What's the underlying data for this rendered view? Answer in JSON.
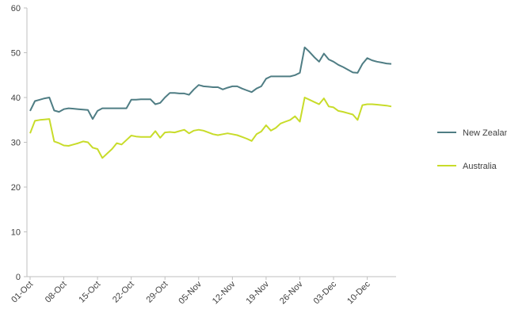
{
  "chart_data": {
    "type": "line",
    "xlabel": "",
    "ylabel": "",
    "ylim": [
      0,
      60
    ],
    "yticks": [
      0,
      10,
      20,
      30,
      40,
      50,
      60
    ],
    "grid": false,
    "legend_position": "right",
    "x_tick_labels": [
      "01-Oct",
      "08-Oct",
      "15-Oct",
      "22-Oct",
      "29-Oct",
      "05-Nov",
      "12-Nov",
      "19-Nov",
      "26-Nov",
      "03-Dec",
      "10-Dec"
    ],
    "x": [
      "01-Oct",
      "02-Oct",
      "03-Oct",
      "04-Oct",
      "05-Oct",
      "06-Oct",
      "07-Oct",
      "08-Oct",
      "09-Oct",
      "10-Oct",
      "11-Oct",
      "12-Oct",
      "13-Oct",
      "14-Oct",
      "15-Oct",
      "16-Oct",
      "17-Oct",
      "18-Oct",
      "19-Oct",
      "20-Oct",
      "21-Oct",
      "22-Oct",
      "23-Oct",
      "24-Oct",
      "25-Oct",
      "26-Oct",
      "27-Oct",
      "28-Oct",
      "29-Oct",
      "30-Oct",
      "31-Oct",
      "01-Nov",
      "02-Nov",
      "03-Nov",
      "04-Nov",
      "05-Nov",
      "06-Nov",
      "07-Nov",
      "08-Nov",
      "09-Nov",
      "10-Nov",
      "11-Nov",
      "12-Nov",
      "13-Nov",
      "14-Nov",
      "15-Nov",
      "16-Nov",
      "17-Nov",
      "18-Nov",
      "19-Nov",
      "20-Nov",
      "21-Nov",
      "22-Nov",
      "23-Nov",
      "24-Nov",
      "25-Nov",
      "26-Nov",
      "27-Nov",
      "28-Nov",
      "29-Nov",
      "30-Nov",
      "01-Dec",
      "02-Dec",
      "03-Dec",
      "04-Dec",
      "05-Dec",
      "06-Dec",
      "07-Dec",
      "08-Dec",
      "09-Dec",
      "10-Dec",
      "11-Dec",
      "12-Dec",
      "13-Dec",
      "14-Dec",
      "15-Dec"
    ],
    "series": [
      {
        "name": "New Zealand",
        "color": "#4f7d84",
        "values": [
          37.0,
          39.2,
          39.5,
          39.8,
          40.0,
          37.1,
          36.8,
          37.4,
          37.6,
          37.5,
          37.4,
          37.3,
          37.2,
          35.2,
          37.0,
          37.6,
          37.6,
          37.6,
          37.6,
          37.6,
          37.6,
          39.5,
          39.5,
          39.6,
          39.6,
          39.6,
          38.5,
          38.8,
          40.0,
          41.0,
          41.0,
          40.9,
          40.9,
          40.6,
          41.8,
          42.8,
          42.5,
          42.4,
          42.3,
          42.3,
          41.8,
          42.2,
          42.5,
          42.5,
          42.0,
          41.6,
          41.2,
          42.0,
          42.5,
          44.2,
          44.7,
          44.7,
          44.7,
          44.7,
          44.7,
          45.0,
          45.5,
          51.2,
          50.2,
          49.0,
          48.0,
          49.8,
          48.5,
          48.0,
          47.3,
          46.8,
          46.2,
          45.6,
          45.5,
          47.5,
          48.8,
          48.3,
          48.0,
          47.8,
          47.6,
          47.5
        ]
      },
      {
        "name": "Australia",
        "color": "#c8dc2a",
        "values": [
          32.0,
          34.8,
          35.0,
          35.1,
          35.2,
          30.2,
          29.8,
          29.3,
          29.2,
          29.5,
          29.8,
          30.2,
          30.0,
          28.8,
          28.5,
          26.5,
          27.5,
          28.5,
          29.8,
          29.5,
          30.5,
          31.5,
          31.3,
          31.2,
          31.2,
          31.2,
          32.5,
          31.0,
          32.2,
          32.3,
          32.2,
          32.5,
          32.8,
          32.0,
          32.6,
          32.8,
          32.6,
          32.2,
          31.8,
          31.6,
          31.8,
          32.0,
          31.8,
          31.6,
          31.2,
          30.8,
          30.3,
          31.8,
          32.4,
          33.8,
          32.6,
          33.2,
          34.2,
          34.6,
          35.0,
          35.8,
          34.6,
          40.0,
          39.5,
          39.0,
          38.5,
          39.8,
          38.0,
          37.8,
          37.0,
          36.8,
          36.5,
          36.2,
          35.0,
          38.3,
          38.5,
          38.5,
          38.4,
          38.3,
          38.2,
          38.0
        ]
      }
    ]
  }
}
